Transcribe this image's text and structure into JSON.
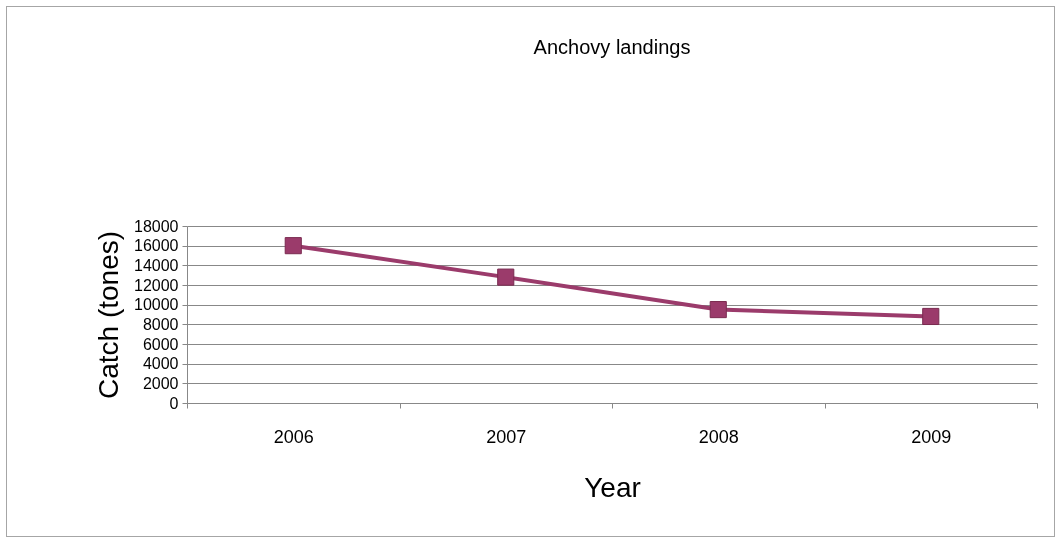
{
  "chart_data": {
    "type": "line",
    "title": "Anchovy landings",
    "xlabel": "Year",
    "ylabel": "Catch (tones)",
    "categories": [
      "2006",
      "2007",
      "2008",
      "2009"
    ],
    "series": [
      {
        "color": "#9b3b6b",
        "values": [
          16000,
          12800,
          9500,
          8800
        ]
      }
    ],
    "ylim": [
      0,
      18000
    ],
    "yticks": [
      0,
      2000,
      4000,
      6000,
      8000,
      10000,
      12000,
      14000,
      16000,
      18000
    ],
    "grid": "y",
    "legend": false,
    "marker": "square",
    "line_style": "solid"
  }
}
